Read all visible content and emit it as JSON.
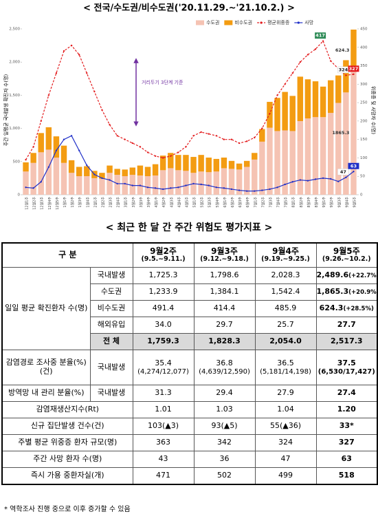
{
  "chart_data": {
    "type": "bar",
    "title": "< 전국/수도권/비수도권('20.11.29.~'21.10.2.) >",
    "y_label": "주간 일평균 국내발생 확진자 수(명)",
    "y2_label": "위중증 및 사망자 수(명)",
    "annotation": "거리두기 3단계 기준",
    "categories": [
      "12월1주",
      "12월2주",
      "12월3주",
      "12월4주",
      "12월5주",
      "1월1주",
      "1월2주",
      "1월3주",
      "1월4주",
      "2월1주",
      "2월2주",
      "2월3주",
      "2월4주",
      "3월1주",
      "3월2주",
      "3월3주",
      "3월4주",
      "4월1주",
      "4월2주",
      "4월3주",
      "4월4주",
      "4월5주",
      "5월1주",
      "5월2주",
      "5월3주",
      "5월4주",
      "6월1주",
      "6월2주",
      "6월3주",
      "6월4주",
      "7월1주",
      "7월2주",
      "7월3주",
      "7월4주",
      "7월5주",
      "8월1주",
      "8월2주",
      "8월3주",
      "8월4주",
      "9월1주",
      "9월2주",
      "9월3주",
      "9월4주",
      "9월5주"
    ],
    "series": [
      {
        "name": "수도권",
        "color": "#f5c3b3",
        "values": [
          350,
          480,
          640,
          680,
          560,
          480,
          330,
          280,
          280,
          250,
          240,
          330,
          300,
          280,
          300,
          290,
          280,
          290,
          370,
          400,
          370,
          360,
          330,
          350,
          340,
          350,
          400,
          390,
          380,
          420,
          530,
          800,
          1010,
          960,
          970,
          960,
          1110,
          1150,
          1170,
          1170,
          1233.9,
          1384.1,
          1542.4,
          1865.3
        ]
      },
      {
        "name": "비수도권",
        "color": "#f39c12",
        "values": [
          138,
          150,
          290,
          337,
          320,
          260,
          190,
          140,
          150,
          110,
          90,
          110,
          90,
          100,
          110,
          150,
          140,
          170,
          220,
          230,
          230,
          240,
          240,
          250,
          220,
          190,
          160,
          120,
          90,
          90,
          100,
          190,
          390,
          500,
          580,
          530,
          670,
          590,
          540,
          460,
          491.4,
          414.4,
          485.9,
          624.3
        ]
      },
      {
        "name": "평균위중증",
        "color": "#e31a1c",
        "type": "line",
        "axis": "y2",
        "dashed": true,
        "values": [
          95,
          130,
          200,
          270,
          330,
          390,
          405,
          380,
          330,
          280,
          230,
          190,
          160,
          150,
          140,
          130,
          115,
          105,
          100,
          105,
          115,
          130,
          160,
          170,
          165,
          160,
          150,
          150,
          140,
          145,
          155,
          180,
          220,
          270,
          300,
          330,
          360,
          380,
          395,
          417,
          363,
          342,
          324,
          327
        ]
      },
      {
        "name": "사망",
        "color": "#1f2fc8",
        "type": "line",
        "axis": "y2",
        "dashed": false,
        "values": [
          20,
          18,
          35,
          75,
          120,
          150,
          160,
          120,
          80,
          55,
          45,
          40,
          30,
          30,
          25,
          25,
          20,
          18,
          15,
          18,
          20,
          25,
          30,
          28,
          25,
          20,
          18,
          15,
          12,
          10,
          10,
          12,
          15,
          20,
          28,
          35,
          40,
          38,
          42,
          45,
          43,
          36,
          47,
          63
        ]
      }
    ],
    "ylim": [
      0,
      2500
    ],
    "yticks": [
      0,
      500,
      {
        "value": 1000,
        "label": "1,000"
      },
      {
        "value": 1500,
        "label": "1,500"
      },
      {
        "value": 2000,
        "label": "2,000"
      },
      {
        "value": 2500,
        "label": "2,500"
      }
    ],
    "y2lim": [
      0,
      450
    ],
    "y2ticks": [
      0,
      50,
      100,
      150,
      200,
      250,
      300,
      350,
      400,
      450
    ],
    "grid": false,
    "legend": "top-right"
  },
  "table": {
    "title": "< 최근 한 달 간 주간 위험도 평가지표 >",
    "header": {
      "label": "구 분",
      "columns": [
        {
          "week": "9월2주",
          "range": "(9.5.~9.11.)"
        },
        {
          "week": "9월3주",
          "range": "(9.12.~9.18.)"
        },
        {
          "week": "9월4주",
          "range": "(9.19.~9.25.)"
        },
        {
          "week": "9월5주",
          "range": "(9.26.~10.2.)"
        }
      ]
    },
    "rows": [
      {
        "label": "일일 평균 확진환자 수(명)",
        "items": [
          {
            "label": "국내발생",
            "cells": [
              "1,725.3",
              "1,798.6",
              "2,028.3",
              {
                "main": "2,489.6",
                "detail": "(+22.7%)"
              }
            ]
          },
          {
            "label": "수도권",
            "cells": [
              "1,233.9",
              "1,384.1",
              "1,542.4",
              {
                "main": "1,865.3",
                "detail": "(+20.9%)"
              }
            ]
          },
          {
            "label": "비수도권",
            "cells": [
              "491.4",
              "414.4",
              "485.9",
              {
                "main": "624.3",
                "detail": "(+28.5%)"
              }
            ]
          },
          {
            "label": "해외유입",
            "cells": [
              "34.0",
              "29.7",
              "25.7",
              "27.7"
            ]
          },
          {
            "label": "전 체",
            "cells": [
              "1,759.3",
              "1,828.3",
              "2,054.0",
              "2,517.3"
            ]
          }
        ]
      },
      {
        "label": "감염경로 조사중 분율(%)(건)",
        "items": [
          {
            "label": "국내발생",
            "cells": [
              {
                "main": "35.4",
                "detail": "(4,274/12,077)"
              },
              {
                "main": "36.8",
                "detail": "(4,639/12,590)"
              },
              {
                "main": "36.5",
                "detail": "(5,181/14,198)"
              },
              {
                "main": "37.5",
                "detail": "(6,530/17,427)"
              }
            ]
          }
        ]
      },
      {
        "label": "방역망 내 관리 분율(%)",
        "items": [
          {
            "label": "국내발생",
            "cells": [
              "31.3",
              "29.4",
              "27.9",
              "27.4"
            ]
          }
        ]
      },
      {
        "label": "감염재생산지수(Rt)",
        "cells": [
          "1.01",
          "1.03",
          "1.04",
          "1.20"
        ]
      },
      {
        "label": "신규 집단발생 건수(건)",
        "cells": [
          "103(▲3)",
          "93(▲5)",
          "55(▲36)",
          "33*"
        ]
      },
      {
        "label": "주별 평균 위중증 환자 규모(명)",
        "cells": [
          "363",
          "342",
          "324",
          "327"
        ]
      },
      {
        "label": "주간 사망 환자 수(명)",
        "cells": [
          "43",
          "36",
          "47",
          "63"
        ]
      },
      {
        "label": "즉시 가용 중환자실(개)",
        "cells": [
          "471",
          "502",
          "499",
          "518"
        ]
      }
    ],
    "footnote": "* 역학조사 진행 중으로 이후 증가할 수 있음"
  }
}
